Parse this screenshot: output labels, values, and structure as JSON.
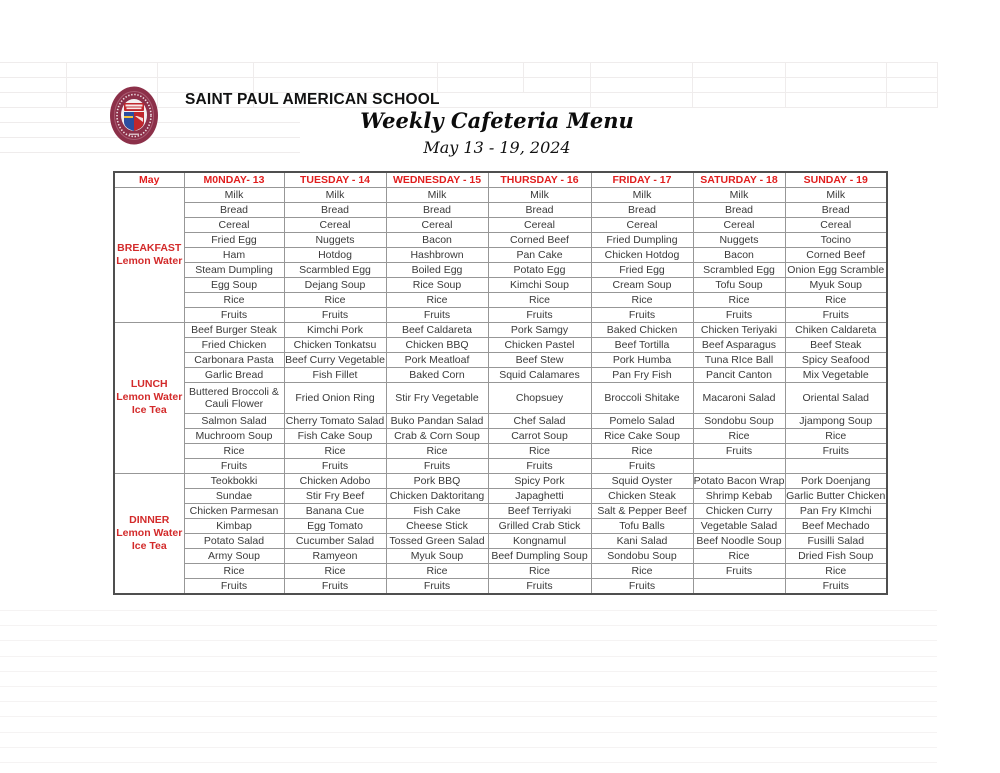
{
  "page": {
    "school_name": "SAINT PAUL AMERICAN SCHOOL",
    "title": "Weekly Cafeteria Menu",
    "date_range": "May 13 - 19, 2024"
  },
  "colors": {
    "header_red": "#e01d1d",
    "label_red": "#d32b2b",
    "seal_maroon": "#8c3049",
    "seal_blue": "#2b4ea0",
    "seal_red": "#c0272d"
  },
  "logo": {
    "name": "saint-paul-american-school-seal"
  },
  "table": {
    "corner_label": "May",
    "day_headers": [
      "M0NDAY- 13",
      "TUESDAY - 14",
      "WEDNESDAY - 15",
      "THURSDAY - 16",
      "FRIDAY - 17",
      "SATURDAY - 18",
      "SUNDAY - 19"
    ],
    "sections": [
      {
        "label_lines": [
          "BREAKFAST",
          "Lemon Water"
        ],
        "rows": [
          [
            "Milk",
            "Milk",
            "Milk",
            "Milk",
            "Milk",
            "Milk",
            "Milk"
          ],
          [
            "Bread",
            "Bread",
            "Bread",
            "Bread",
            "Bread",
            "Bread",
            "Bread"
          ],
          [
            "Cereal",
            "Cereal",
            "Cereal",
            "Cereal",
            "Cereal",
            "Cereal",
            "Cereal"
          ],
          [
            "Fried Egg",
            "Nuggets",
            "Bacon",
            "Corned Beef",
            "Fried Dumpling",
            "Nuggets",
            "Tocino"
          ],
          [
            "Ham",
            "Hotdog",
            "Hashbrown",
            "Pan Cake",
            "Chicken Hotdog",
            "Bacon",
            "Corned Beef"
          ],
          [
            "Steam Dumpling",
            "Scarmbled Egg",
            "Boiled Egg",
            "Potato Egg",
            "Fried Egg",
            "Scrambled Egg",
            "Onion Egg Scramble"
          ],
          [
            "Egg Soup",
            "Dejang Soup",
            "Rice Soup",
            "Kimchi Soup",
            "Cream Soup",
            "Tofu Soup",
            "Myuk Soup"
          ],
          [
            "Rice",
            "Rice",
            "Rice",
            "Rice",
            "Rice",
            "Rice",
            "Rice"
          ],
          [
            "Fruits",
            "Fruits",
            "Fruits",
            "Fruits",
            "Fruits",
            "Fruits",
            "Fruits"
          ]
        ]
      },
      {
        "label_lines": [
          "LUNCH",
          "Lemon Water",
          "Ice Tea"
        ],
        "rows": [
          [
            "Beef Burger Steak",
            "Kimchi Pork",
            "Beef Caldareta",
            "Pork Samgy",
            "Baked Chicken",
            "Chicken Teriyaki",
            "Chiken Caldareta"
          ],
          [
            "Fried Chicken",
            "Chicken Tonkatsu",
            "Chicken BBQ",
            "Chicken Pastel",
            "Beef Tortilla",
            "Beef Asparagus",
            "Beef Steak"
          ],
          [
            "Carbonara Pasta",
            "Beef Curry Vegetable",
            "Pork Meatloaf",
            "Beef Stew",
            "Pork Humba",
            "Tuna RIce Ball",
            "Spicy Seafood"
          ],
          [
            "Garlic Bread",
            "Fish Fillet",
            "Baked Corn",
            "Squid Calamares",
            "Pan Fry Fish",
            "Pancit Canton",
            "Mix Vegetable"
          ],
          [
            "Buttered Broccoli & Cauli Flower",
            "Fried Onion Ring",
            "Stir Fry Vegetable",
            "Chopsuey",
            "Broccoli Shitake",
            "Macaroni Salad",
            "Oriental Salad"
          ],
          [
            "Salmon Salad",
            "Cherry Tomato Salad",
            "Buko Pandan Salad",
            "Chef Salad",
            "Pomelo Salad",
            "Sondobu Soup",
            "Jjampong Soup"
          ],
          [
            "Muchroom Soup",
            "Fish Cake Soup",
            "Crab & Corn Soup",
            "Carrot Soup",
            "Rice Cake Soup",
            "Rice",
            "Rice"
          ],
          [
            "Rice",
            "Rice",
            "Rice",
            "Rice",
            "Rice",
            "Fruits",
            "Fruits"
          ],
          [
            "Fruits",
            "Fruits",
            "Fruits",
            "Fruits",
            "Fruits",
            "",
            ""
          ]
        ]
      },
      {
        "label_lines": [
          "DINNER",
          "Lemon Water",
          "Ice Tea"
        ],
        "rows": [
          [
            "Teokbokki",
            "Chicken Adobo",
            "Pork BBQ",
            "Spicy Pork",
            "Squid Oyster",
            "Potato Bacon Wrap",
            "Pork Doenjang"
          ],
          [
            "Sundae",
            "Stir Fry Beef",
            "Chicken Daktoritang",
            "Japaghetti",
            "Chicken Steak",
            "Shrimp Kebab",
            "Garlic Butter Chicken"
          ],
          [
            "Chicken Parmesan",
            "Banana Cue",
            "Fish Cake",
            "Beef Terriyaki",
            "Salt & Pepper Beef",
            "Chicken Curry",
            "Pan Fry KImchi"
          ],
          [
            "Kimbap",
            "Egg Tomato",
            "Cheese Stick",
            "Grilled Crab Stick",
            "Tofu Balls",
            "Vegetable Salad",
            "Beef Mechado"
          ],
          [
            "Potato Salad",
            "Cucumber Salad",
            "Tossed Green Salad",
            "Kongnamul",
            "Kani Salad",
            "Beef Noodle Soup",
            "Fusilli Salad"
          ],
          [
            "Army Soup",
            "Ramyeon",
            "Myuk Soup",
            "Beef Dumpling Soup",
            "Sondobu Soup",
            "Rice",
            "Dried Fish Soup"
          ],
          [
            "Rice",
            "Rice",
            "Rice",
            "Rice",
            "Rice",
            "Fruits",
            "Rice"
          ],
          [
            "Fruits",
            "Fruits",
            "Fruits",
            "Fruits",
            "Fruits",
            "",
            "Fruits"
          ]
        ]
      }
    ]
  }
}
